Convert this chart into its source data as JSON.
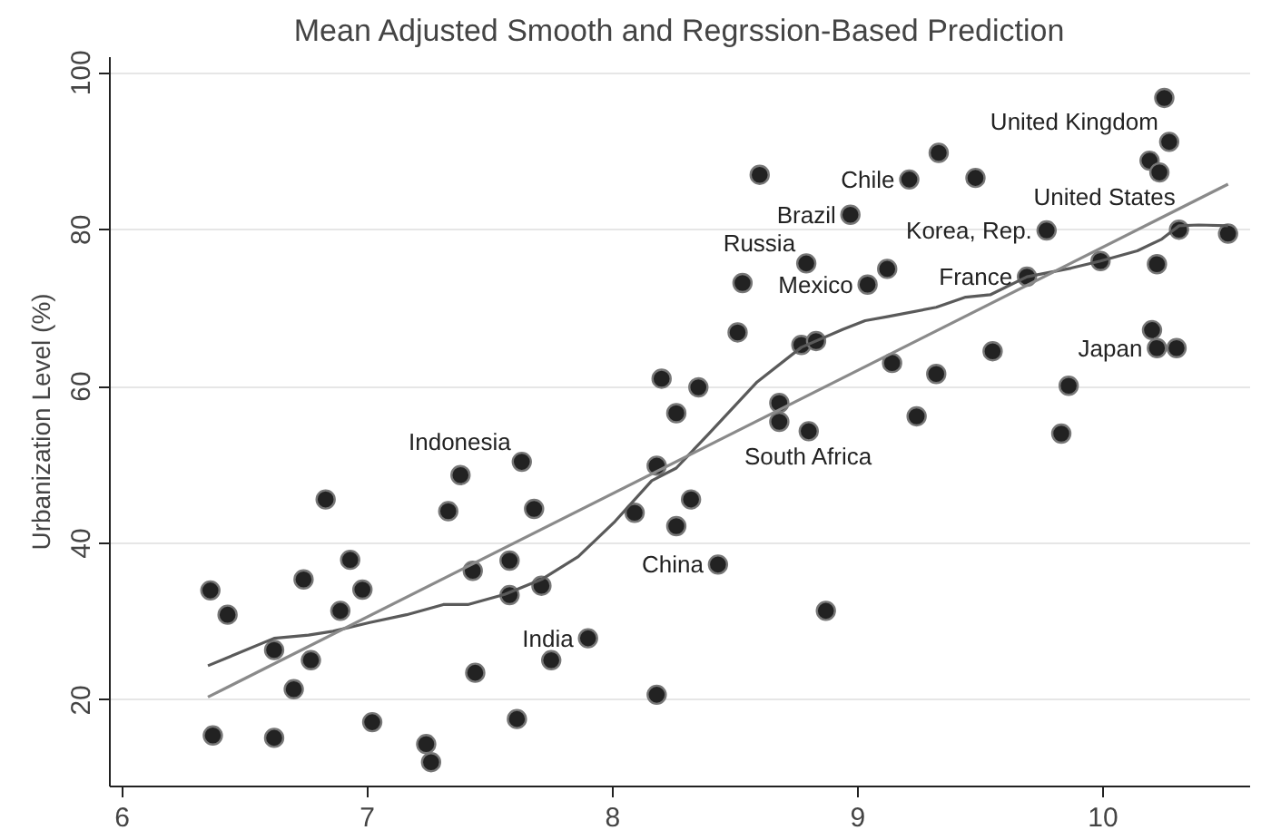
{
  "chart_data": {
    "type": "scatter",
    "title": "Mean Adjusted Smooth and Regrssion-Based Prediction",
    "ylabel": "Urbanization Level (%)",
    "xlim": [
      5.95,
      10.6
    ],
    "ylim": [
      9,
      102
    ],
    "xticks": [
      6,
      7,
      8,
      9,
      10
    ],
    "yticks": [
      20,
      40,
      60,
      80,
      100
    ],
    "grid": "y",
    "series": [
      {
        "color": "#222222",
        "x": [
          6.36,
          6.43,
          6.37,
          6.62,
          6.7,
          6.77,
          6.74,
          6.83,
          6.93,
          6.98,
          6.89,
          6.62,
          7.02,
          7.24,
          7.26,
          7.38,
          7.33,
          7.63,
          7.68,
          7.43,
          7.58,
          7.58,
          7.71,
          7.44,
          7.75,
          7.9,
          7.61,
          8.18,
          8.18,
          8.09,
          8.32,
          8.26,
          8.43,
          8.87,
          8.2,
          8.35,
          8.26,
          8.68,
          8.68,
          8.8,
          9.24,
          9.83,
          8.51,
          8.77,
          8.83,
          8.53,
          8.79,
          9.04,
          9.12,
          10.25,
          10.27,
          10.19,
          10.23,
          9.33,
          9.48,
          8.6,
          9.21,
          8.97,
          9.77,
          10.31,
          10.51,
          9.99,
          10.22,
          9.69,
          10.2,
          10.22,
          10.3,
          9.55,
          9.14,
          9.32,
          9.86
        ],
        "values": [
          34.0,
          30.9,
          15.5,
          26.4,
          21.4,
          25.1,
          35.4,
          45.6,
          37.9,
          34.1,
          31.4,
          15.2,
          17.2,
          14.4,
          12.1,
          48.7,
          44.1,
          50.4,
          44.4,
          36.5,
          37.8,
          33.4,
          34.6,
          23.5,
          25.1,
          27.9,
          17.6,
          20.7,
          49.9,
          43.9,
          45.6,
          42.2,
          37.3,
          31.4,
          61.0,
          59.9,
          56.6,
          57.9,
          55.5,
          54.3,
          56.2,
          54.0,
          66.9,
          65.3,
          65.8,
          73.2,
          75.7,
          73.0,
          75.0,
          96.8,
          91.2,
          88.8,
          87.3,
          89.8,
          86.6,
          87.0,
          86.4,
          81.9,
          79.9,
          80.0,
          79.5,
          76.0,
          75.6,
          74.0,
          67.2,
          64.9,
          64.9,
          64.5,
          63.0,
          61.6,
          60.1
        ]
      },
      {
        "type": "line",
        "color": "#5a5a5a",
        "x": [
          6.35,
          6.62,
          6.76,
          6.86,
          7.01,
          7.16,
          7.31,
          7.41,
          7.56,
          7.71,
          7.86,
          8.01,
          8.16,
          8.26,
          8.39,
          8.59,
          8.77,
          8.94,
          9.03,
          9.12,
          9.32,
          9.44,
          9.54,
          9.69,
          9.87,
          9.99,
          10.14,
          10.24,
          10.31,
          10.39,
          10.51
        ],
        "values": [
          24.4,
          27.9,
          28.3,
          28.8,
          29.9,
          30.9,
          32.2,
          32.2,
          33.5,
          35.4,
          38.3,
          42.8,
          48.0,
          49.6,
          53.9,
          60.6,
          65.0,
          67.3,
          68.4,
          68.9,
          70.1,
          71.4,
          71.7,
          74.0,
          75.1,
          76.0,
          77.3,
          78.8,
          80.5,
          80.6,
          80.5
        ]
      },
      {
        "type": "line",
        "color": "#8a8a8a",
        "x": [
          6.35,
          10.51
        ],
        "values": [
          20.4,
          85.8
        ]
      }
    ],
    "annotations": [
      {
        "text": "United Kingdom",
        "x": 10.27,
        "y": 91.2
      },
      {
        "text": "Chile",
        "x": 9.21,
        "y": 86.4
      },
      {
        "text": "Brazil",
        "x": 8.97,
        "y": 81.9
      },
      {
        "text": "Korea, Rep.",
        "x": 9.77,
        "y": 79.9
      },
      {
        "text": "United States",
        "x": 10.31,
        "y": 80.0
      },
      {
        "text": "Mexico",
        "x": 9.04,
        "y": 73.0
      },
      {
        "text": "Russia",
        "x": 8.79,
        "y": 75.7
      },
      {
        "text": "France",
        "x": 9.69,
        "y": 74.0
      },
      {
        "text": "Japan",
        "x": 10.22,
        "y": 64.9
      },
      {
        "text": "South Africa",
        "x": 8.8,
        "y": 54.3
      },
      {
        "text": "Indonesia",
        "x": 7.63,
        "y": 50.4
      },
      {
        "text": "China",
        "x": 8.43,
        "y": 37.3
      },
      {
        "text": "India",
        "x": 7.9,
        "y": 27.9
      }
    ]
  }
}
